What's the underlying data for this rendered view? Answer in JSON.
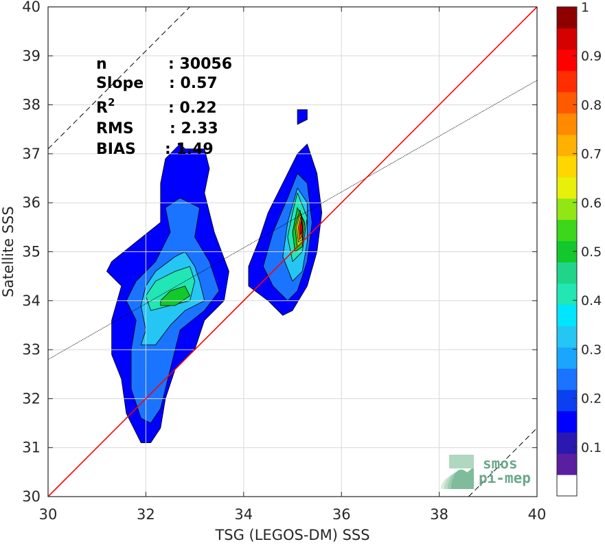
{
  "chart_data": {
    "type": "contour",
    "xlabel": "TSG (LEGOS-DM) SSS",
    "ylabel": "Satellite SSS",
    "xlim": [
      30,
      40
    ],
    "ylim": [
      30,
      40
    ],
    "x_ticks": [
      "30",
      "32",
      "34",
      "36",
      "38",
      "40"
    ],
    "y_ticks": [
      "30",
      "31",
      "32",
      "33",
      "34",
      "35",
      "36",
      "37",
      "38",
      "39",
      "40"
    ],
    "grid": true,
    "stats": [
      {
        "label": "n",
        "value": ": 30056"
      },
      {
        "label": "Slope",
        "value": ": 0.57"
      },
      {
        "label": "R²",
        "value": ": 0.22"
      },
      {
        "label": "RMS",
        "value": ": 2.33"
      },
      {
        "label": "BIAS",
        "value": ": 1.49"
      }
    ],
    "reference_lines": {
      "identity": {
        "slope": 1,
        "intercept": 0,
        "color": "#ff0000"
      },
      "regression": {
        "slope": 0.57,
        "intercept": 15.7,
        "color": "#000000"
      },
      "upper_dashed": {
        "slope": 1,
        "intercept": 7.1
      },
      "lower_dashed": {
        "slope": 1,
        "intercept": -8.6
      }
    },
    "colorbar": {
      "ticks": [
        "0.1",
        "0.2",
        "0.3",
        "0.4",
        "0.5",
        "0.6",
        "0.7",
        "0.8",
        "0.9",
        "1"
      ],
      "range": [
        0,
        1
      ],
      "colors": [
        "#ffffff",
        "#5a1ea0",
        "#2a18b0",
        "#0000ff",
        "#0a40f0",
        "#1a74ff",
        "#1aa6ff",
        "#26c6f4",
        "#00e6ff",
        "#22e6b4",
        "#20d48a",
        "#12c82c",
        "#3cd61a",
        "#92e616",
        "#e6f00a",
        "#ffd600",
        "#ffb000",
        "#ff8a00",
        "#ff5a00",
        "#ff2e00",
        "#ff0000",
        "#d40000",
        "#8e0000"
      ]
    },
    "density_blobs": [
      {
        "name": "west-cluster",
        "levels": [
          {
            "level": 0.1,
            "points": [
              [
                31.9,
                31.1
              ],
              [
                31.6,
                31.7
              ],
              [
                31.5,
                32.4
              ],
              [
                31.3,
                32.9
              ],
              [
                31.3,
                33.6
              ],
              [
                31.5,
                34.3
              ],
              [
                31.2,
                34.6
              ],
              [
                31.3,
                34.8
              ],
              [
                31.8,
                35.2
              ],
              [
                32.3,
                35.6
              ],
              [
                32.3,
                36.4
              ],
              [
                32.4,
                36.9
              ],
              [
                32.7,
                37.2
              ],
              [
                32.8,
                37.1
              ],
              [
                33.2,
                37.1
              ],
              [
                33.3,
                36.7
              ],
              [
                33.2,
                36.2
              ],
              [
                33.4,
                35.4
              ],
              [
                33.7,
                34.6
              ],
              [
                33.6,
                34.0
              ],
              [
                33.2,
                33.6
              ],
              [
                33.0,
                33.0
              ],
              [
                32.6,
                32.6
              ],
              [
                32.4,
                32.0
              ],
              [
                32.3,
                31.4
              ],
              [
                32.1,
                31.1
              ]
            ]
          },
          {
            "level": 0.2,
            "points": [
              [
                31.9,
                31.6
              ],
              [
                31.7,
                32.2
              ],
              [
                31.7,
                33.0
              ],
              [
                31.8,
                33.6
              ],
              [
                31.6,
                34.0
              ],
              [
                31.8,
                34.4
              ],
              [
                32.2,
                34.8
              ],
              [
                32.5,
                35.4
              ],
              [
                32.4,
                35.9
              ],
              [
                32.7,
                36.1
              ],
              [
                33.1,
                35.9
              ],
              [
                33.0,
                35.3
              ],
              [
                33.3,
                34.8
              ],
              [
                33.5,
                34.2
              ],
              [
                33.2,
                33.8
              ],
              [
                32.7,
                33.4
              ],
              [
                32.5,
                32.6
              ],
              [
                32.3,
                31.8
              ],
              [
                32.1,
                31.5
              ]
            ]
          },
          {
            "level": 0.3,
            "points": [
              [
                31.9,
                33.1
              ],
              [
                32.0,
                33.4
              ],
              [
                31.9,
                33.9
              ],
              [
                32.0,
                34.3
              ],
              [
                32.2,
                34.6
              ],
              [
                32.6,
                34.9
              ],
              [
                32.8,
                35.0
              ],
              [
                33.0,
                34.7
              ],
              [
                33.1,
                34.4
              ],
              [
                33.2,
                34.0
              ],
              [
                32.8,
                33.8
              ],
              [
                32.5,
                33.5
              ],
              [
                32.2,
                33.1
              ]
            ]
          },
          {
            "level": 0.4,
            "points": [
              [
                32.0,
                34.1
              ],
              [
                32.2,
                34.4
              ],
              [
                32.6,
                34.6
              ],
              [
                32.9,
                34.7
              ],
              [
                33.0,
                34.4
              ],
              [
                32.9,
                34.0
              ],
              [
                32.5,
                33.9
              ],
              [
                32.1,
                33.8
              ]
            ]
          },
          {
            "level": 0.5,
            "points": [
              [
                32.3,
                34.0
              ],
              [
                32.5,
                34.2
              ],
              [
                32.8,
                34.3
              ],
              [
                32.9,
                34.1
              ],
              [
                32.6,
                33.9
              ],
              [
                32.3,
                33.9
              ]
            ]
          }
        ]
      },
      {
        "name": "east-cluster",
        "levels": [
          {
            "level": 0.1,
            "points": [
              [
                34.8,
                33.7
              ],
              [
                34.5,
                34.0
              ],
              [
                34.1,
                34.3
              ],
              [
                34.1,
                34.7
              ],
              [
                34.3,
                35.2
              ],
              [
                34.5,
                35.8
              ],
              [
                34.8,
                36.4
              ],
              [
                35.1,
                37.0
              ],
              [
                35.3,
                37.2
              ],
              [
                35.5,
                36.6
              ],
              [
                35.6,
                35.8
              ],
              [
                35.5,
                35.0
              ],
              [
                35.3,
                34.3
              ],
              [
                35.0,
                33.8
              ]
            ]
          },
          {
            "level": 0.2,
            "points": [
              [
                34.9,
                34.0
              ],
              [
                34.6,
                34.3
              ],
              [
                34.4,
                34.7
              ],
              [
                34.6,
                35.4
              ],
              [
                34.9,
                36.1
              ],
              [
                35.1,
                36.6
              ],
              [
                35.3,
                36.4
              ],
              [
                35.4,
                35.6
              ],
              [
                35.3,
                34.8
              ],
              [
                35.1,
                34.2
              ]
            ]
          },
          {
            "level": 0.3,
            "points": [
              [
                35.0,
                34.4
              ],
              [
                34.8,
                34.9
              ],
              [
                34.9,
                35.6
              ],
              [
                35.1,
                36.3
              ],
              [
                35.3,
                36.0
              ],
              [
                35.3,
                35.2
              ],
              [
                35.2,
                34.6
              ]
            ]
          },
          {
            "level": 0.4,
            "points": [
              [
                35.0,
                34.8
              ],
              [
                34.9,
                35.3
              ],
              [
                35.0,
                35.8
              ],
              [
                35.1,
                36.2
              ],
              [
                35.3,
                35.7
              ],
              [
                35.2,
                35.0
              ]
            ]
          },
          {
            "level": 0.5,
            "points": [
              [
                35.05,
                35.0
              ],
              [
                35.0,
                35.4
              ],
              [
                35.1,
                35.9
              ],
              [
                35.25,
                35.6
              ],
              [
                35.2,
                35.1
              ]
            ]
          },
          {
            "level": 0.6,
            "points": [
              [
                35.1,
                35.1
              ],
              [
                35.05,
                35.5
              ],
              [
                35.15,
                35.85
              ],
              [
                35.25,
                35.5
              ],
              [
                35.2,
                35.2
              ]
            ]
          },
          {
            "level": 0.7,
            "points": [
              [
                35.12,
                35.2
              ],
              [
                35.08,
                35.5
              ],
              [
                35.16,
                35.8
              ],
              [
                35.22,
                35.5
              ],
              [
                35.2,
                35.25
              ]
            ]
          },
          {
            "level": 0.85,
            "points": [
              [
                35.14,
                35.25
              ],
              [
                35.12,
                35.5
              ],
              [
                35.17,
                35.72
              ],
              [
                35.21,
                35.5
              ],
              [
                35.19,
                35.3
              ]
            ]
          },
          {
            "level": 0.95,
            "points": [
              [
                35.16,
                35.35
              ],
              [
                35.15,
                35.5
              ],
              [
                35.18,
                35.62
              ],
              [
                35.2,
                35.5
              ],
              [
                35.19,
                35.4
              ]
            ]
          }
        ]
      },
      {
        "name": "north-blip",
        "levels": [
          {
            "level": 0.1,
            "points": [
              [
                35.1,
                37.6
              ],
              [
                35.3,
                37.7
              ],
              [
                35.3,
                37.9
              ],
              [
                35.1,
                37.9
              ]
            ]
          }
        ]
      }
    ]
  },
  "logo": {
    "line1": "smos",
    "line2": "pi-mep"
  }
}
